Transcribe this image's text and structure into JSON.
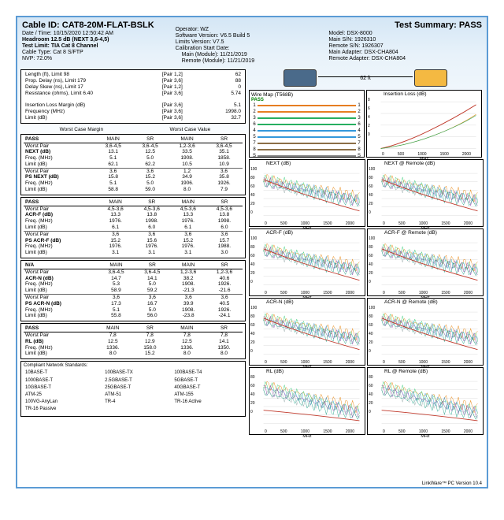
{
  "header": {
    "cable_id_label": "Cable ID:",
    "cable_id": "CAT8-20M-FLAT-BSLK",
    "datetime_label": "Date / Time:",
    "datetime": "10/15/2020  12:50:42 AM",
    "headroom": "Headroom 12.5 dB (NEXT 3,6-4,5)",
    "test_limit_label": "Test Limit:",
    "test_limit": "TIA Cat 8 Channel",
    "cable_type_label": "Cable Type:",
    "cable_type": "Cat 8 S/FTP",
    "nvp_label": "NVP:",
    "nvp": "72.0%",
    "operator_label": "Operator:",
    "operator": "WZ",
    "sw_version_label": "Software Version:",
    "sw_version": "V6.5 Build 5",
    "limits_version_label": "Limits Version:",
    "limits_version": "V7.5",
    "cal_date_label": "Calibration Start Date:",
    "cal_main": "Main (Module): 11/21/2019",
    "cal_remote": "Remote (Module): 11/21/2019",
    "test_summary_label": "Test Summary:",
    "test_summary": "PASS",
    "model_label": "Model:",
    "model": "DSX-8000",
    "main_sn_label": "Main S/N:",
    "main_sn": "1926310",
    "remote_sn_label": "Remote S/N:",
    "remote_sn": "1926307",
    "main_adapter_label": "Main Adapter:",
    "main_adapter": "DSX-CHA804",
    "remote_adapter_label": "Remote Adapter:",
    "remote_adapter": "DSX-CHA804"
  },
  "box1": {
    "r1": {
      "l": "Length (ft), Limit 98",
      "p": "[Pair 1,2]",
      "v": "62"
    },
    "r2": {
      "l": "Prop. Delay (ns), Limit 179",
      "p": "[Pair 3,6]",
      "v": "88"
    },
    "r3": {
      "l": "Delay Skew (ns), Limit 17",
      "p": "[Pair 1,2]",
      "v": "0"
    },
    "r4": {
      "l": "Resistance (ohms), Limit 6.40",
      "p": "[Pair 3,6]",
      "v": "5.74"
    },
    "r5": {
      "l": "Insertion Loss Margin (dB)",
      "p": "[Pair 3,6]",
      "v": "5.1"
    },
    "r6": {
      "l": "Frequency (MHz)",
      "p": "[Pair 3,6]",
      "v": "1998.0"
    },
    "r7": {
      "l": "Limit (dB)",
      "p": "[Pair 3,6]",
      "v": "32.7"
    }
  },
  "colhdr": {
    "wcm": "Worst Case Margin",
    "wcv": "Worst Case Value",
    "main": "MAIN",
    "sr": "SR"
  },
  "next": {
    "pass": "PASS",
    "wp": {
      "l": "Worst Pair",
      "a": "3,6-4,5",
      "b": "3,6-4,5",
      "c": "1,2-3,6",
      "d": "3,6-4,5"
    },
    "next": {
      "l": "NEXT (dB)",
      "a": "13.1",
      "b": "12.5",
      "c": "33.5",
      "d": "35.1"
    },
    "fr": {
      "l": "Freq. (MHz)",
      "a": "5.1",
      "b": "5.0",
      "c": "1908.",
      "d": "1858."
    },
    "li": {
      "l": "Limit (dB)",
      "a": "62.1",
      "b": "62.2",
      "c": "10.5",
      "d": "10.9"
    },
    "wp2": {
      "l": "Worst Pair",
      "a": "3,6",
      "b": "3,6",
      "c": "1,2",
      "d": "3,6"
    },
    "psnext": {
      "l": "PS NEXT (dB)",
      "a": "15.8",
      "b": "15.2",
      "c": "34.9",
      "d": "35.8"
    },
    "fr2": {
      "l": "Freq. (MHz)",
      "a": "5.1",
      "b": "5.0",
      "c": "1906.",
      "d": "1926."
    },
    "li2": {
      "l": "Limit (dB)",
      "a": "58.8",
      "b": "59.0",
      "c": "8.0",
      "d": "7.9"
    }
  },
  "acrf": {
    "pass": "PASS",
    "wp": {
      "l": "Worst Pair",
      "a": "4,5-3,6",
      "b": "4,5-3,6",
      "c": "4,5-3,6",
      "d": "4,5-3,6"
    },
    "acrf": {
      "l": "ACR-F (dB)",
      "a": "13.3",
      "b": "13.8",
      "c": "13.3",
      "d": "13.8"
    },
    "fr": {
      "l": "Freq. (MHz)",
      "a": "1976.",
      "b": "1998.",
      "c": "1976.",
      "d": "1998."
    },
    "li": {
      "l": "Limit (dB)",
      "a": "6.1",
      "b": "6.0",
      "c": "6.1",
      "d": "6.0"
    },
    "wp2": {
      "l": "Worst Pair",
      "a": "3,6",
      "b": "3,6",
      "c": "3,6",
      "d": "3,6"
    },
    "psacrf": {
      "l": "PS ACR-F (dB)",
      "a": "15.2",
      "b": "15.6",
      "c": "15.2",
      "d": "15.7"
    },
    "fr2": {
      "l": "Freq. (MHz)",
      "a": "1976.",
      "b": "1976.",
      "c": "1976.",
      "d": "1988."
    },
    "li2": {
      "l": "Limit (dB)",
      "a": "3.1",
      "b": "3.1",
      "c": "3.1",
      "d": "3.0"
    }
  },
  "acrn": {
    "pass": "N/A",
    "wp": {
      "l": "Worst Pair",
      "a": "3,6-4,5",
      "b": "3,6-4,5",
      "c": "1,2-3,6",
      "d": "1,2-3,6"
    },
    "acrn": {
      "l": "ACR-N (dB)",
      "a": "14.7",
      "b": "14.1",
      "c": "38.2",
      "d": "40.6"
    },
    "fr": {
      "l": "Freq. (MHz)",
      "a": "5.3",
      "b": "5.0",
      "c": "1908.",
      "d": "1926."
    },
    "li": {
      "l": "Limit (dB)",
      "a": "58.9",
      "b": "59.2",
      "c": "-21.3",
      "d": "-21.6"
    },
    "wp2": {
      "l": "Worst Pair",
      "a": "3,6",
      "b": "3,6",
      "c": "3,6",
      "d": "3,6"
    },
    "psacrn": {
      "l": "PS ACR-N (dB)",
      "a": "17.3",
      "b": "16.7",
      "c": "39.9",
      "d": "40.5"
    },
    "fr2": {
      "l": "Freq. (MHz)",
      "a": "5.1",
      "b": "5.0",
      "c": "1908.",
      "d": "1926."
    },
    "li2": {
      "l": "Limit (dB)",
      "a": "55.8",
      "b": "56.0",
      "c": "-23.8",
      "d": "-24.1"
    }
  },
  "rl": {
    "pass": "PASS",
    "wp": {
      "l": "Worst Pair",
      "a": "7,8",
      "b": "7,8",
      "c": "7,8",
      "d": "7,8"
    },
    "rl": {
      "l": "RL (dB)",
      "a": "12.5",
      "b": "12.9",
      "c": "12.5",
      "d": "14.1"
    },
    "fr": {
      "l": "Freq. (MHz)",
      "a": "1336.",
      "b": "158.0",
      "c": "1336.",
      "d": "1350."
    },
    "li": {
      "l": "Limit (dB)",
      "a": "8.0",
      "b": "15.2",
      "c": "8.0",
      "d": "8.0"
    }
  },
  "standards": {
    "title": "Compliant Network Standards:",
    "rows": [
      [
        "10BASE-T",
        "100BASE-TX",
        "100BASE-T4"
      ],
      [
        "1000BASE-T",
        "2.5GBASE-T",
        "5GBASE-T"
      ],
      [
        "10GBASE-T",
        "25GBASE-T",
        "40GBASE-T"
      ],
      [
        "ATM-25",
        "ATM-51",
        "ATM-155"
      ],
      [
        "100VG-AnyLan",
        "TR-4",
        "TR-16 Active"
      ],
      [
        "TR-16 Passive",
        "",
        ""
      ]
    ]
  },
  "devices": {
    "dist": "62 ft"
  },
  "wiremap": {
    "title": "Wire Map (T568B)",
    "pass": "PASS",
    "pairs": [
      {
        "n": "1",
        "c": "#e67e22"
      },
      {
        "n": "2",
        "c": "#e67e22"
      },
      {
        "n": "3",
        "c": "#27ae60"
      },
      {
        "n": "6",
        "c": "#27ae60"
      },
      {
        "n": "4",
        "c": "#3498db"
      },
      {
        "n": "5",
        "c": "#3498db"
      },
      {
        "n": "7",
        "c": "#8b6f47"
      },
      {
        "n": "8",
        "c": "#8b6f47"
      },
      {
        "n": "S",
        "c": "#888888"
      }
    ]
  },
  "charts": {
    "insloss": "Insertion Loss (dB)",
    "next": "NEXT (dB)",
    "nextR": "NEXT @ Remote (dB)",
    "acrf": "ACR-F (dB)",
    "acrfR": "ACR-F @ Remote (dB)",
    "acrn": "ACR-N (dB)",
    "acrnR": "ACR-N @ Remote (dB)",
    "rl": "RL (dB)",
    "rlR": "RL @ Remote (dB)",
    "xlabel": "MHz",
    "xticks": [
      "0",
      "500",
      "1000",
      "1500",
      "2000"
    ],
    "yticks_il": [
      "8",
      "6",
      "4",
      "2",
      "0"
    ],
    "yticks_100": [
      "100",
      "80",
      "60",
      "40",
      "20",
      "0"
    ],
    "yticks_rl": [
      "80",
      "60",
      "40",
      "20",
      "0"
    ],
    "colors": {
      "limit": "#c0392b",
      "s1": "#e67e00",
      "s2": "#2ecc71",
      "s3": "#3498db",
      "s4": "#8e44ad",
      "s5": "#95a5a6",
      "s6": "#16a085",
      "grid": "#cccccc"
    }
  },
  "footer": "LinkWare™ PC Version 10.4"
}
